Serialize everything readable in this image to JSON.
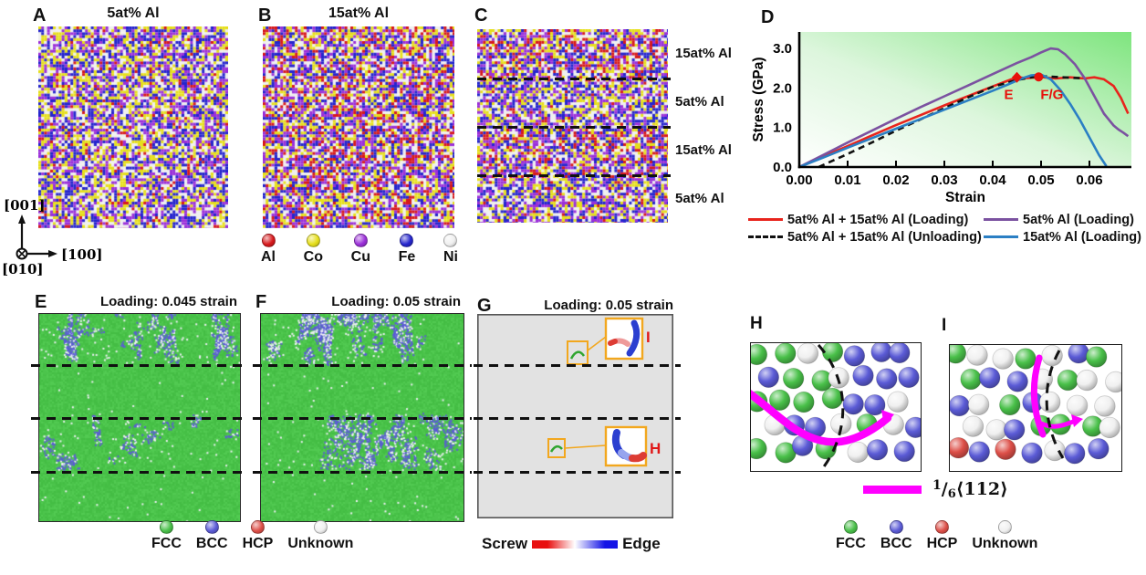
{
  "figure": {
    "panel_a": {
      "letter": "A",
      "title": "5at% Al",
      "al_percent": 5
    },
    "panel_b": {
      "letter": "B",
      "title": "15at% Al",
      "al_percent": 15
    },
    "panel_c": {
      "letter": "C",
      "layers": [
        "15at% Al",
        "5at% Al",
        "15at% Al",
        "5at% Al"
      ]
    },
    "panel_d": {
      "letter": "D"
    },
    "panel_e": {
      "letter": "E",
      "title": "Loading: 0.045 strain"
    },
    "panel_f": {
      "letter": "F",
      "title": "Loading: 0.05 strain"
    },
    "panel_g": {
      "letter": "G",
      "title": "Loading: 0.05 strain",
      "callout_upper": "I",
      "callout_lower": "H"
    },
    "panel_h": {
      "letter": "H"
    },
    "panel_i": {
      "letter": "I"
    },
    "axes_triad": {
      "up": "[001]",
      "right": "[100]",
      "out": "[010]"
    },
    "element_legend": [
      {
        "name": "Al",
        "color": "#d7191c"
      },
      {
        "name": "Co",
        "color": "#e6df1b"
      },
      {
        "name": "Cu",
        "color": "#9b30d9"
      },
      {
        "name": "Fe",
        "color": "#2525cd"
      },
      {
        "name": "Ni",
        "color": "#efefef"
      }
    ],
    "structure_legend": [
      {
        "name": "FCC",
        "color": "#49c049"
      },
      {
        "name": "BCC",
        "color": "#5b5bd6"
      },
      {
        "name": "HCP",
        "color": "#dd4f48"
      },
      {
        "name": "Unknown",
        "color": "#f0f0f0"
      }
    ],
    "screw_edge": {
      "left": "Screw",
      "right": "Edge",
      "left_color": "#e81010",
      "right_color": "#1414e6"
    },
    "dislocation_legend": {
      "num": "1",
      "slash": "/",
      "den": "6",
      "vector": "⟨112⟩",
      "color": "#ff00ff"
    }
  },
  "chart_data": {
    "type": "line",
    "title": "",
    "xlabel": "Strain",
    "ylabel": "Stress (GPa)",
    "xlim": [
      0,
      0.0685
    ],
    "ylim": [
      0,
      3.42
    ],
    "xticks": [
      "0.00",
      "0.01",
      "0.02",
      "0.03",
      "0.04",
      "0.05",
      "0.06"
    ],
    "yticks": [
      "0.0",
      "1.0",
      "2.0",
      "3.0"
    ],
    "grid": false,
    "legend_position": "bottom",
    "background": "white to green diagonal gradient",
    "series": [
      {
        "name": "5at% Al + 15at% Al (Loading)",
        "color": "#e8241c",
        "style": "solid",
        "points": [
          [
            0,
            0
          ],
          [
            0.005,
            0.27
          ],
          [
            0.01,
            0.53
          ],
          [
            0.015,
            0.8
          ],
          [
            0.02,
            1.06
          ],
          [
            0.025,
            1.31
          ],
          [
            0.03,
            1.56
          ],
          [
            0.035,
            1.8
          ],
          [
            0.04,
            2.04
          ],
          [
            0.043,
            2.18
          ],
          [
            0.045,
            2.27
          ],
          [
            0.047,
            2.25
          ],
          [
            0.05,
            2.28
          ],
          [
            0.053,
            2.24
          ],
          [
            0.056,
            2.27
          ],
          [
            0.059,
            2.24
          ],
          [
            0.061,
            2.27
          ],
          [
            0.063,
            2.22
          ],
          [
            0.065,
            2.05
          ],
          [
            0.0665,
            1.75
          ],
          [
            0.068,
            1.35
          ]
        ]
      },
      {
        "name": "5at% Al (Loading)",
        "color": "#7b52a0",
        "style": "solid",
        "points": [
          [
            0,
            0
          ],
          [
            0.005,
            0.31
          ],
          [
            0.01,
            0.62
          ],
          [
            0.015,
            0.92
          ],
          [
            0.02,
            1.22
          ],
          [
            0.025,
            1.51
          ],
          [
            0.03,
            1.79
          ],
          [
            0.035,
            2.07
          ],
          [
            0.04,
            2.35
          ],
          [
            0.045,
            2.63
          ],
          [
            0.048,
            2.78
          ],
          [
            0.05,
            2.9
          ],
          [
            0.052,
            3.0
          ],
          [
            0.0535,
            2.98
          ],
          [
            0.055,
            2.85
          ],
          [
            0.057,
            2.6
          ],
          [
            0.059,
            2.25
          ],
          [
            0.061,
            1.8
          ],
          [
            0.063,
            1.35
          ],
          [
            0.065,
            1.05
          ],
          [
            0.066,
            0.95
          ],
          [
            0.067,
            0.87
          ],
          [
            0.068,
            0.78
          ]
        ]
      },
      {
        "name": "5at% Al + 15at% Al (Unloading)",
        "color": "#111111",
        "style": "dashed",
        "points": [
          [
            0.004,
            0
          ],
          [
            0.01,
            0.33
          ],
          [
            0.015,
            0.62
          ],
          [
            0.02,
            0.92
          ],
          [
            0.025,
            1.2
          ],
          [
            0.03,
            1.49
          ],
          [
            0.035,
            1.77
          ],
          [
            0.04,
            2.03
          ],
          [
            0.045,
            2.2
          ],
          [
            0.048,
            2.27
          ],
          [
            0.05,
            2.3
          ],
          [
            0.053,
            2.28
          ],
          [
            0.056,
            2.26
          ],
          [
            0.058,
            2.25
          ]
        ]
      },
      {
        "name": "15at% Al (Loading)",
        "color": "#2b7fc4",
        "style": "solid",
        "points": [
          [
            0,
            0
          ],
          [
            0.005,
            0.24
          ],
          [
            0.01,
            0.49
          ],
          [
            0.015,
            0.73
          ],
          [
            0.02,
            0.97
          ],
          [
            0.025,
            1.21
          ],
          [
            0.03,
            1.45
          ],
          [
            0.035,
            1.69
          ],
          [
            0.04,
            1.93
          ],
          [
            0.043,
            2.08
          ],
          [
            0.046,
            2.24
          ],
          [
            0.048,
            2.32
          ],
          [
            0.05,
            2.34
          ],
          [
            0.052,
            2.22
          ],
          [
            0.054,
            1.95
          ],
          [
            0.056,
            1.6
          ],
          [
            0.058,
            1.2
          ],
          [
            0.06,
            0.75
          ],
          [
            0.062,
            0.3
          ],
          [
            0.0635,
            0.02
          ]
        ]
      }
    ],
    "markers": [
      {
        "label": "E",
        "x": 0.045,
        "y": 2.27,
        "shape": "diamond",
        "color": "#e8100a"
      },
      {
        "label": "F/G",
        "x": 0.0495,
        "y": 2.28,
        "shape": "circle",
        "color": "#e8100a"
      }
    ]
  }
}
